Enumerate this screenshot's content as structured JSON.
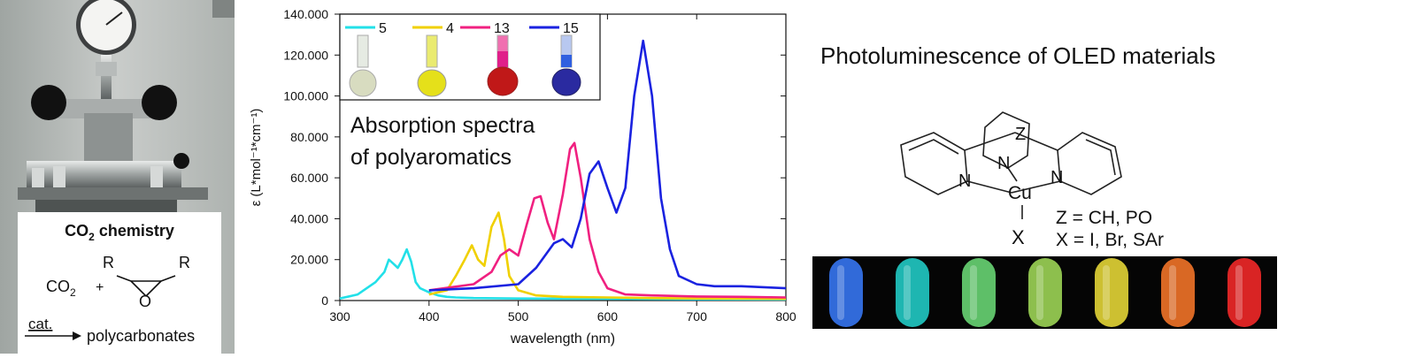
{
  "co2": {
    "title_main": "CO",
    "title_sub": "2",
    "title_rest": " chemistry",
    "co2_main": "CO",
    "co2_sub": "2",
    "plus": "+",
    "r_left": "R",
    "r_right": "R",
    "o_atom": "O",
    "catalyst": "cat.",
    "product": "polycarbonates"
  },
  "chart_data": {
    "type": "line",
    "title": "",
    "annotation_line1": "Absorption spectra",
    "annotation_line2": "of polyaromatics",
    "xlabel": "wavelength (nm)",
    "ylabel": "ε (L*mol⁻¹*cm⁻¹)",
    "xlim": [
      300,
      800
    ],
    "ylim": [
      0,
      140000
    ],
    "x_ticks": [
      "300",
      "400",
      "500",
      "600",
      "700",
      "800"
    ],
    "y_ticks": [
      "0",
      "20.000",
      "40.000",
      "60.000",
      "80.000",
      "100.000",
      "120.000",
      "140.000"
    ],
    "legend_position": "top-left",
    "series": [
      {
        "name": "5",
        "color": "#22e0e8",
        "x": [
          300,
          320,
          340,
          350,
          355,
          360,
          365,
          370,
          375,
          380,
          385,
          390,
          400,
          410,
          420,
          430,
          450,
          500,
          600,
          700,
          800
        ],
        "y": [
          1000,
          3000,
          9000,
          14000,
          20000,
          18000,
          16000,
          20000,
          25000,
          19000,
          9000,
          6000,
          4000,
          2500,
          1800,
          1500,
          1200,
          1000,
          800,
          600,
          500
        ]
      },
      {
        "name": "4",
        "color": "#f0d000",
        "x": [
          400,
          420,
          430,
          440,
          448,
          455,
          462,
          470,
          478,
          484,
          490,
          500,
          520,
          550,
          600,
          650,
          700,
          800
        ],
        "y": [
          3000,
          5000,
          12000,
          20000,
          27000,
          20000,
          17000,
          36000,
          43000,
          30000,
          12000,
          5000,
          2500,
          1800,
          1500,
          1200,
          1000,
          800
        ]
      },
      {
        "name": "13",
        "color": "#f02080",
        "x": [
          400,
          450,
          470,
          480,
          490,
          500,
          510,
          518,
          525,
          533,
          540,
          550,
          558,
          563,
          570,
          580,
          590,
          600,
          620,
          650,
          700,
          750,
          800
        ],
        "y": [
          5000,
          8000,
          14000,
          22000,
          25000,
          22000,
          38000,
          50000,
          51000,
          38000,
          30000,
          52000,
          74000,
          77000,
          60000,
          30000,
          14000,
          6000,
          3000,
          2500,
          2000,
          1800,
          1500
        ]
      },
      {
        "name": "15",
        "color": "#1a22e0",
        "x": [
          400,
          450,
          500,
          520,
          540,
          550,
          560,
          570,
          580,
          590,
          600,
          610,
          620,
          630,
          640,
          650,
          660,
          670,
          680,
          700,
          720,
          750,
          800
        ],
        "y": [
          5000,
          6000,
          8000,
          16000,
          28000,
          30000,
          26000,
          40000,
          62000,
          68000,
          55000,
          43000,
          55000,
          100000,
          127000,
          100000,
          50000,
          25000,
          12000,
          8000,
          7000,
          7000,
          6000
        ]
      }
    ]
  },
  "oled": {
    "title": "Photoluminescence of OLED materials",
    "z_atom": "Z",
    "n_left": "N",
    "n_mid": "N",
    "n_right": "N",
    "cu_atom": "Cu",
    "x_atom": "X",
    "z_def": "Z = CH, PO",
    "x_def": "X = I, Br, SAr",
    "glow_colors": [
      "#3a7dff",
      "#23d6d0",
      "#6fe07a",
      "#a6e05a",
      "#f1e23a",
      "#ff7a2a",
      "#ff2a2a"
    ]
  }
}
